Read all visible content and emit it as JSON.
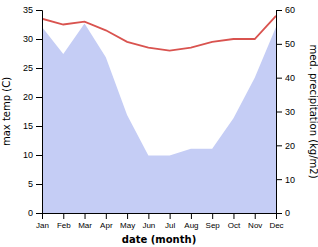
{
  "chart_data": {
    "type": "line",
    "categories": [
      "Jan",
      "Feb",
      "Mar",
      "Apr",
      "May",
      "Jun",
      "Jul",
      "Aug",
      "Sep",
      "Oct",
      "Nov",
      "Dec"
    ],
    "series": [
      {
        "type": "area",
        "color": "#c5cdf5",
        "axis": "y2",
        "values": [
          55,
          47,
          56,
          46,
          29,
          17,
          17,
          19,
          19,
          28,
          40,
          55
        ]
      },
      {
        "type": "line",
        "color": "#d9534f",
        "values": [
          33.5,
          32.5,
          33.0,
          31.5,
          29.5,
          28.5,
          28.0,
          28.5,
          29.5,
          30.0,
          30.0,
          34.0
        ]
      }
    ],
    "xlabel": "date (month)",
    "ylabel": "max temp (C)",
    "y2label": "med. precipitation (kg/m2)",
    "ylim": [
      0,
      35
    ],
    "yticks": [
      0,
      5,
      10,
      15,
      20,
      25,
      30,
      35
    ],
    "y2lim": [
      0,
      60
    ],
    "y2ticks": [
      0,
      10,
      20,
      30,
      40,
      50,
      60
    ],
    "grid": false
  }
}
